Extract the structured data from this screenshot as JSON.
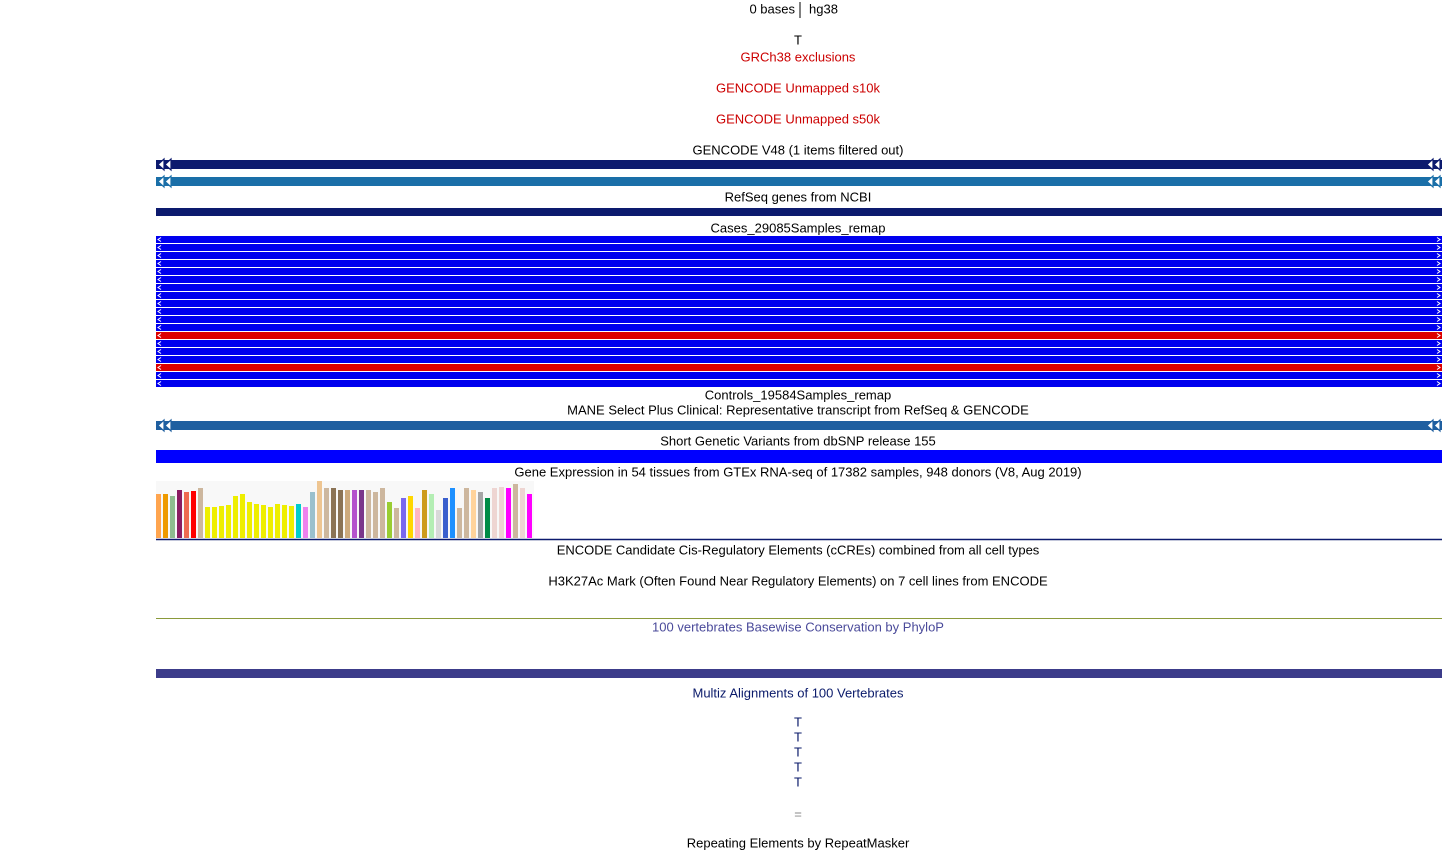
{
  "header": {
    "scale_label": "0 bases",
    "assembly": "hg38"
  },
  "labels": [
    {
      "text": "T",
      "color": "#000000"
    },
    {
      "text": "GRCh38 exclusions",
      "color": "#cc0000"
    },
    {
      "text": "GENCODE Unmapped s10k",
      "color": "#cc0000"
    },
    {
      "text": "GENCODE Unmapped s50k",
      "color": "#cc0000"
    },
    {
      "text": "GENCODE V48 (1 items filtered out)",
      "color": "#000000"
    },
    {
      "text": "RefSeq genes from NCBI",
      "color": "#000000"
    },
    {
      "text": "Cases_29085Samples_remap",
      "color": "#000000"
    },
    {
      "text": "Controls_19584Samples_remap",
      "color": "#000000"
    },
    {
      "text": "MANE Select Plus Clinical: Representative transcript from RefSeq & GENCODE",
      "color": "#000000"
    },
    {
      "text": "Short Genetic Variants from dbSNP release 155",
      "color": "#000000"
    },
    {
      "text": "Gene Expression in 54 tissues from GTEx RNA-seq of 17382 samples, 948 donors (V8, Aug 2019)",
      "color": "#000000"
    },
    {
      "text": "ENCODE Candidate Cis-Regulatory Elements (cCREs) combined from all cell types",
      "color": "#000000"
    },
    {
      "text": "H3K27Ac Mark (Often Found Near Regulatory Elements) on 7 cell lines from ENCODE",
      "color": "#000000"
    },
    {
      "text": "100 vertebrates Basewise Conservation by PhyloP",
      "color": "#4a4a9a"
    },
    {
      "text": "Multiz Alignments of 100 Vertebrates",
      "color": "#0a1a6a"
    },
    {
      "text": "T",
      "color": "#0a1a6a"
    },
    {
      "text": "T",
      "color": "#0a1a6a"
    },
    {
      "text": "T",
      "color": "#0a1a6a"
    },
    {
      "text": "T",
      "color": "#0a1a6a"
    },
    {
      "text": "T",
      "color": "#0a1a6a"
    },
    {
      "text": "=",
      "color": "#888888"
    },
    {
      "text": "Repeating Elements by RepeatMasker",
      "color": "#000000"
    }
  ],
  "cases_rows": [
    "#0000ee",
    "#0000ee",
    "#0000ee",
    "#0000ee",
    "#0000ee",
    "#0000ee",
    "#0000ee",
    "#0000ee",
    "#0000ee",
    "#0000ee",
    "#0000ee",
    "#0000ee",
    "#dd0000",
    "#0000ee",
    "#0000ee",
    "#0000ee",
    "#dd0000",
    "#0000ee",
    "#0000ee"
  ],
  "gtex": {
    "values": [
      44,
      44,
      42,
      48,
      46,
      47,
      50,
      31,
      31,
      32,
      33,
      42,
      44,
      36,
      34,
      33,
      31,
      34,
      33,
      32,
      34,
      31,
      46,
      57,
      50,
      50,
      48,
      48,
      48,
      48,
      48,
      46,
      50,
      36,
      30,
      40,
      42,
      30,
      48,
      44,
      28,
      40,
      50,
      30,
      50,
      48,
      46,
      40,
      50,
      51,
      50,
      54,
      50,
      44
    ],
    "colors": [
      "#ffa54f",
      "#ee9a00",
      "#8fbc8f",
      "#8b1c62",
      "#ee6a50",
      "#ff0000",
      "#cdb79e",
      "#eeee00",
      "#eeee00",
      "#eeee00",
      "#eeee00",
      "#eeee00",
      "#eeee00",
      "#eeee00",
      "#eeee00",
      "#eeee00",
      "#eeee00",
      "#eeee00",
      "#eeee00",
      "#eeee00",
      "#00cdcd",
      "#ee82ee",
      "#9ac0cd",
      "#eec591",
      "#cdb79e",
      "#8b7355",
      "#8b7355",
      "#cdaa7d",
      "#b452cd",
      "#7a378b",
      "#cdb79e",
      "#cdb79e",
      "#cdb79e",
      "#9acd32",
      "#cdb79e",
      "#7a67ee",
      "#ffd700",
      "#ffb6c1",
      "#cd9b1d",
      "#b4eeb4",
      "#d9d9d9",
      "#3a5fcd",
      "#1e90ff",
      "#cdb79e",
      "#cdb79e",
      "#ffd39b",
      "#a6a6a6",
      "#008b45",
      "#eed5d2",
      "#eed5d2",
      "#ff00ff",
      "#cdb79e",
      "#eed5d2",
      "#ff00ff"
    ]
  }
}
